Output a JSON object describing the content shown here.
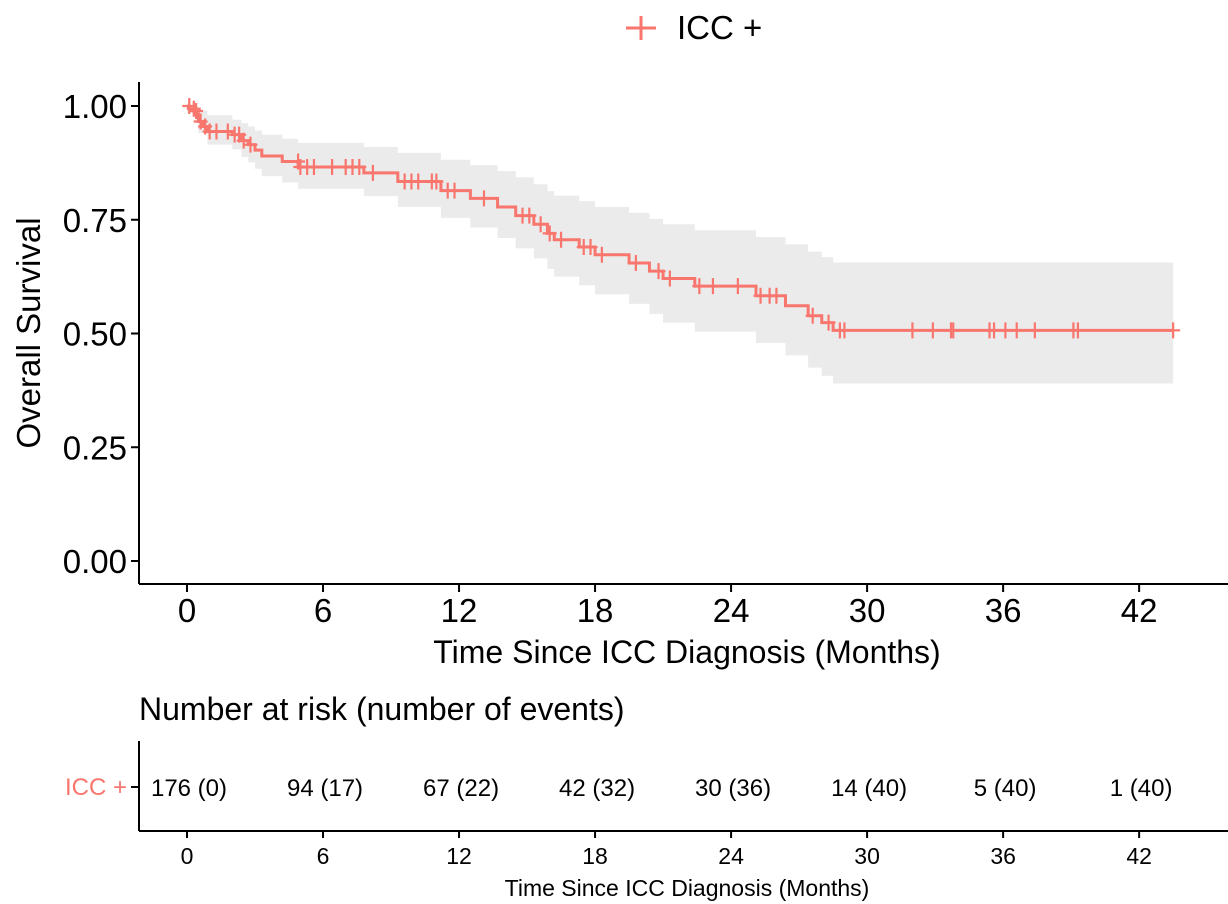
{
  "chart_data": {
    "type": "line",
    "subtype": "kaplan-meier",
    "series": [
      {
        "name": "ICC +",
        "color": "#F8766D",
        "steps": [
          {
            "x": 0,
            "y": 1.0
          },
          {
            "x": 0.1,
            "y": 0.994
          },
          {
            "x": 0.3,
            "y": 0.989
          },
          {
            "x": 0.4,
            "y": 0.983
          },
          {
            "x": 0.5,
            "y": 0.966
          },
          {
            "x": 0.7,
            "y": 0.955
          },
          {
            "x": 0.9,
            "y": 0.944
          },
          {
            "x": 2.0,
            "y": 0.937
          },
          {
            "x": 2.4,
            "y": 0.924
          },
          {
            "x": 2.7,
            "y": 0.915
          },
          {
            "x": 3.0,
            "y": 0.903
          },
          {
            "x": 3.3,
            "y": 0.89
          },
          {
            "x": 4.2,
            "y": 0.878
          },
          {
            "x": 4.9,
            "y": 0.866
          },
          {
            "x": 7.8,
            "y": 0.853
          },
          {
            "x": 9.3,
            "y": 0.834
          },
          {
            "x": 11.2,
            "y": 0.814
          },
          {
            "x": 12.5,
            "y": 0.797
          },
          {
            "x": 13.7,
            "y": 0.778
          },
          {
            "x": 14.5,
            "y": 0.759
          },
          {
            "x": 15.3,
            "y": 0.74
          },
          {
            "x": 15.9,
            "y": 0.72
          },
          {
            "x": 16.2,
            "y": 0.706
          },
          {
            "x": 17.3,
            "y": 0.69
          },
          {
            "x": 18.0,
            "y": 0.673
          },
          {
            "x": 19.5,
            "y": 0.655
          },
          {
            "x": 20.4,
            "y": 0.637
          },
          {
            "x": 21.0,
            "y": 0.621
          },
          {
            "x": 22.4,
            "y": 0.604
          },
          {
            "x": 25.1,
            "y": 0.583
          },
          {
            "x": 26.4,
            "y": 0.561
          },
          {
            "x": 27.4,
            "y": 0.539
          },
          {
            "x": 28.0,
            "y": 0.524
          },
          {
            "x": 28.5,
            "y": 0.507
          },
          {
            "x": 43.5,
            "y": 0.507
          }
        ],
        "ci": [
          {
            "x": 0,
            "lo": 0.985,
            "hi": 1.0
          },
          {
            "x": 0.5,
            "lo": 0.94,
            "hi": 0.99
          },
          {
            "x": 0.9,
            "lo": 0.915,
            "hi": 0.98
          },
          {
            "x": 2.0,
            "lo": 0.905,
            "hi": 0.97
          },
          {
            "x": 2.4,
            "lo": 0.888,
            "hi": 0.962
          },
          {
            "x": 2.7,
            "lo": 0.876,
            "hi": 0.955
          },
          {
            "x": 3.0,
            "lo": 0.862,
            "hi": 0.946
          },
          {
            "x": 3.3,
            "lo": 0.846,
            "hi": 0.937
          },
          {
            "x": 4.2,
            "lo": 0.832,
            "hi": 0.928
          },
          {
            "x": 4.9,
            "lo": 0.818,
            "hi": 0.919
          },
          {
            "x": 7.8,
            "lo": 0.802,
            "hi": 0.91
          },
          {
            "x": 9.3,
            "lo": 0.778,
            "hi": 0.897
          },
          {
            "x": 11.2,
            "lo": 0.754,
            "hi": 0.882
          },
          {
            "x": 12.5,
            "lo": 0.733,
            "hi": 0.87
          },
          {
            "x": 13.7,
            "lo": 0.71,
            "hi": 0.857
          },
          {
            "x": 14.5,
            "lo": 0.687,
            "hi": 0.843
          },
          {
            "x": 15.3,
            "lo": 0.665,
            "hi": 0.828
          },
          {
            "x": 15.9,
            "lo": 0.642,
            "hi": 0.813
          },
          {
            "x": 16.2,
            "lo": 0.625,
            "hi": 0.803
          },
          {
            "x": 17.3,
            "lo": 0.606,
            "hi": 0.791
          },
          {
            "x": 18.0,
            "lo": 0.586,
            "hi": 0.778
          },
          {
            "x": 19.5,
            "lo": 0.565,
            "hi": 0.765
          },
          {
            "x": 20.4,
            "lo": 0.543,
            "hi": 0.752
          },
          {
            "x": 21.0,
            "lo": 0.524,
            "hi": 0.74
          },
          {
            "x": 22.4,
            "lo": 0.504,
            "hi": 0.727
          },
          {
            "x": 25.1,
            "lo": 0.479,
            "hi": 0.712
          },
          {
            "x": 26.4,
            "lo": 0.452,
            "hi": 0.696
          },
          {
            "x": 27.4,
            "lo": 0.425,
            "hi": 0.68
          },
          {
            "x": 28.0,
            "lo": 0.407,
            "hi": 0.668
          },
          {
            "x": 28.5,
            "lo": 0.39,
            "hi": 0.656
          },
          {
            "x": 43.5,
            "lo": 0.39,
            "hi": 0.656
          }
        ],
        "censored": [
          {
            "x": 0.1,
            "y": 1.0
          },
          {
            "x": 0.3,
            "y": 0.994
          },
          {
            "x": 0.4,
            "y": 0.989
          },
          {
            "x": 0.6,
            "y": 0.966
          },
          {
            "x": 0.8,
            "y": 0.955
          },
          {
            "x": 1.0,
            "y": 0.944
          },
          {
            "x": 1.3,
            "y": 0.944
          },
          {
            "x": 1.8,
            "y": 0.944
          },
          {
            "x": 2.1,
            "y": 0.937
          },
          {
            "x": 2.3,
            "y": 0.937
          },
          {
            "x": 2.5,
            "y": 0.924
          },
          {
            "x": 2.8,
            "y": 0.915
          },
          {
            "x": 4.9,
            "y": 0.878
          },
          {
            "x": 5.0,
            "y": 0.866
          },
          {
            "x": 5.3,
            "y": 0.866
          },
          {
            "x": 5.6,
            "y": 0.866
          },
          {
            "x": 6.4,
            "y": 0.866
          },
          {
            "x": 7.0,
            "y": 0.866
          },
          {
            "x": 7.3,
            "y": 0.866
          },
          {
            "x": 7.6,
            "y": 0.866
          },
          {
            "x": 8.2,
            "y": 0.853
          },
          {
            "x": 9.6,
            "y": 0.834
          },
          {
            "x": 9.9,
            "y": 0.834
          },
          {
            "x": 10.2,
            "y": 0.834
          },
          {
            "x": 10.8,
            "y": 0.834
          },
          {
            "x": 11.0,
            "y": 0.834
          },
          {
            "x": 11.5,
            "y": 0.814
          },
          {
            "x": 11.8,
            "y": 0.814
          },
          {
            "x": 13.1,
            "y": 0.797
          },
          {
            "x": 14.8,
            "y": 0.759
          },
          {
            "x": 15.1,
            "y": 0.759
          },
          {
            "x": 15.6,
            "y": 0.74
          },
          {
            "x": 16.0,
            "y": 0.72
          },
          {
            "x": 16.5,
            "y": 0.706
          },
          {
            "x": 17.5,
            "y": 0.69
          },
          {
            "x": 17.8,
            "y": 0.69
          },
          {
            "x": 18.3,
            "y": 0.673
          },
          {
            "x": 19.8,
            "y": 0.655
          },
          {
            "x": 20.8,
            "y": 0.637
          },
          {
            "x": 21.3,
            "y": 0.621
          },
          {
            "x": 22.6,
            "y": 0.604
          },
          {
            "x": 23.2,
            "y": 0.604
          },
          {
            "x": 24.3,
            "y": 0.604
          },
          {
            "x": 25.3,
            "y": 0.583
          },
          {
            "x": 25.7,
            "y": 0.583
          },
          {
            "x": 26.0,
            "y": 0.583
          },
          {
            "x": 27.6,
            "y": 0.539
          },
          {
            "x": 28.3,
            "y": 0.524
          },
          {
            "x": 28.8,
            "y": 0.507
          },
          {
            "x": 29.0,
            "y": 0.507
          },
          {
            "x": 32.0,
            "y": 0.507
          },
          {
            "x": 32.9,
            "y": 0.507
          },
          {
            "x": 33.7,
            "y": 0.507
          },
          {
            "x": 33.8,
            "y": 0.507
          },
          {
            "x": 35.4,
            "y": 0.507
          },
          {
            "x": 35.6,
            "y": 0.507
          },
          {
            "x": 36.1,
            "y": 0.507
          },
          {
            "x": 36.6,
            "y": 0.507
          },
          {
            "x": 37.4,
            "y": 0.507
          },
          {
            "x": 39.1,
            "y": 0.507
          },
          {
            "x": 39.3,
            "y": 0.507
          },
          {
            "x": 43.5,
            "y": 0.507
          }
        ]
      }
    ],
    "legend_label": "ICC +",
    "xlabel": "Time Since ICC Diagnosis (Months)",
    "ylabel": "Overall Survival",
    "xlim": [
      -2,
      45.5
    ],
    "ylim": [
      -0.05,
      1.05
    ],
    "xticks": [
      0,
      6,
      12,
      18,
      24,
      30,
      36,
      42
    ],
    "xtick_labels": [
      "0",
      "6",
      "12",
      "18",
      "24",
      "30",
      "36",
      "42"
    ],
    "yticks": [
      0,
      0.25,
      0.5,
      0.75,
      1.0
    ],
    "ytick_labels": [
      "0.00",
      "0.25",
      "0.50",
      "0.75",
      "1.00"
    ],
    "grid": false,
    "legend_position": "top",
    "ci_color": "#EBEBEB",
    "risk_table": {
      "title": "Number at risk (number of events)",
      "group_label": "ICC +",
      "times": [
        0,
        6,
        12,
        18,
        24,
        30,
        36,
        42
      ],
      "cells": [
        "176 (0)",
        "94 (17)",
        "67 (22)",
        "42 (32)",
        "30 (36)",
        "14 (40)",
        "5 (40)",
        "1 (40)"
      ],
      "xlabel": "Time Since ICC Diagnosis (Months)",
      "xtick_labels": [
        "0",
        "6",
        "12",
        "18",
        "24",
        "30",
        "36",
        "42"
      ]
    }
  }
}
